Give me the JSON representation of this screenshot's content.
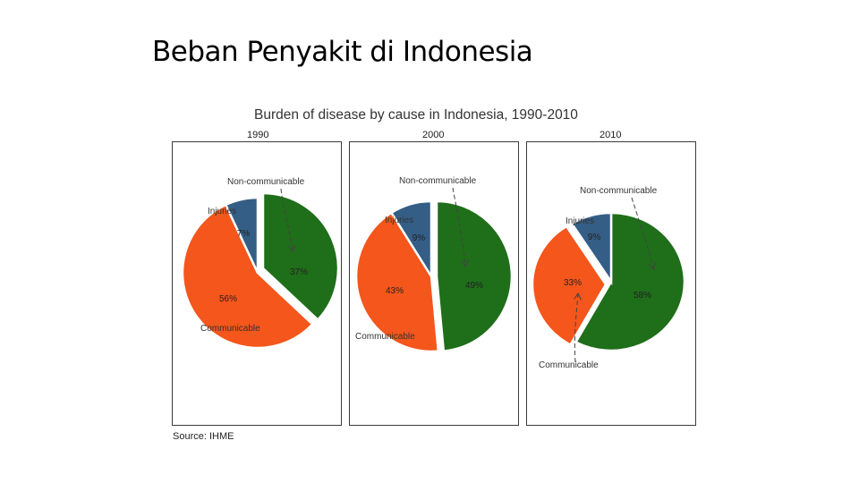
{
  "slide": {
    "title": "Beban Penyakit di Indonesia"
  },
  "figure": {
    "source": "Source: IHME"
  },
  "chart_data": {
    "type": "pie",
    "title": "Burden of disease by cause in Indonesia, 1990-2010",
    "colors": {
      "Non-communicable": "#1f6e1a",
      "Communicable": "#f4561b",
      "Injuries": "#355e86"
    },
    "grid": false,
    "legend": "callout labels with arrows",
    "panels": [
      {
        "year": "1990",
        "slices": [
          {
            "name": "Non-communicable",
            "value": 37,
            "label": "37%"
          },
          {
            "name": "Communicable",
            "value": 56,
            "label": "56%"
          },
          {
            "name": "Injuries",
            "value": 7,
            "label": "7%"
          }
        ]
      },
      {
        "year": "2000",
        "slices": [
          {
            "name": "Non-communicable",
            "value": 49,
            "label": "49%"
          },
          {
            "name": "Communicable",
            "value": 43,
            "label": "43%"
          },
          {
            "name": "Injuries",
            "value": 9,
            "label": "9%"
          }
        ]
      },
      {
        "year": "2010",
        "slices": [
          {
            "name": "Non-communicable",
            "value": 58,
            "label": "58%"
          },
          {
            "name": "Communicable",
            "value": 33,
            "label": "33%"
          },
          {
            "name": "Injuries",
            "value": 9,
            "label": "9%"
          }
        ]
      }
    ]
  }
}
